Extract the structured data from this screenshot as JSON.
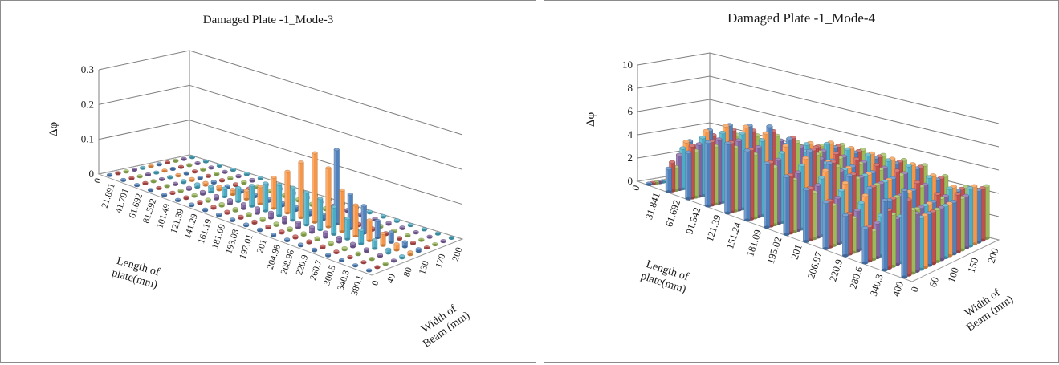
{
  "chart_data": [
    {
      "type": "bar3d",
      "title": "Damaged Plate -1_Mode-3",
      "zlabel": "Δφ",
      "xlabel": "Length of plate(mm)",
      "ylabel": "Width of Beam (mm)",
      "zlim": [
        0,
        0.3
      ],
      "zticks": [
        "0",
        "0.1",
        "0.2",
        "0.3"
      ],
      "x_ticks": [
        "0",
        "21.891",
        "41.791",
        "61.692",
        "81.592",
        "101.49",
        "121.39",
        "141.29",
        "161.19",
        "181.09",
        "193.03",
        "197.01",
        "201",
        "204.98",
        "208.96",
        "220.9",
        "260.7",
        "300.5",
        "340.3",
        "380.1"
      ],
      "y_ticks": [
        "0",
        "40",
        "80",
        "130",
        "170",
        "200"
      ],
      "series_colors": [
        "#4f81bd",
        "#c0504d",
        "#9bbb59",
        "#8064a2",
        "#4bacc6",
        "#f79646",
        "#4f81bd",
        "#c0504d",
        "#9bbb59",
        "#8064a2",
        "#4bacc6"
      ],
      "values": [
        [
          0.0,
          0.0,
          0.0,
          0.0,
          0.0,
          0.0,
          0.0,
          0.0,
          0.0,
          0.0,
          0.0
        ],
        [
          0.001,
          0.001,
          0.001,
          0.001,
          0.002,
          0.002,
          0.001,
          0.001,
          0.001,
          0.001,
          0.001
        ],
        [
          0.002,
          0.002,
          0.002,
          0.003,
          0.004,
          0.004,
          0.003,
          0.002,
          0.002,
          0.002,
          0.002
        ],
        [
          0.003,
          0.003,
          0.003,
          0.004,
          0.006,
          0.006,
          0.004,
          0.003,
          0.003,
          0.003,
          0.003
        ],
        [
          0.004,
          0.004,
          0.004,
          0.006,
          0.01,
          0.008,
          0.005,
          0.004,
          0.004,
          0.004,
          0.004
        ],
        [
          0.004,
          0.005,
          0.005,
          0.008,
          0.016,
          0.01,
          0.006,
          0.005,
          0.005,
          0.005,
          0.004
        ],
        [
          0.005,
          0.006,
          0.006,
          0.01,
          0.025,
          0.015,
          0.007,
          0.006,
          0.006,
          0.005,
          0.005
        ],
        [
          0.005,
          0.006,
          0.007,
          0.012,
          0.04,
          0.025,
          0.008,
          0.006,
          0.006,
          0.006,
          0.005
        ],
        [
          0.005,
          0.006,
          0.007,
          0.014,
          0.06,
          0.05,
          0.009,
          0.007,
          0.006,
          0.006,
          0.005
        ],
        [
          0.005,
          0.006,
          0.007,
          0.016,
          0.08,
          0.09,
          0.01,
          0.007,
          0.006,
          0.006,
          0.005
        ],
        [
          0.005,
          0.006,
          0.007,
          0.017,
          0.09,
          0.12,
          0.012,
          0.007,
          0.006,
          0.006,
          0.005
        ],
        [
          0.005,
          0.006,
          0.007,
          0.017,
          0.095,
          0.16,
          0.014,
          0.007,
          0.006,
          0.006,
          0.005
        ],
        [
          0.005,
          0.006,
          0.007,
          0.016,
          0.095,
          0.2,
          0.016,
          0.007,
          0.006,
          0.006,
          0.005
        ],
        [
          0.005,
          0.006,
          0.007,
          0.016,
          0.09,
          0.17,
          0.215,
          0.007,
          0.006,
          0.006,
          0.005
        ],
        [
          0.005,
          0.006,
          0.007,
          0.015,
          0.08,
          0.12,
          0.1,
          0.007,
          0.006,
          0.006,
          0.005
        ],
        [
          0.005,
          0.006,
          0.007,
          0.014,
          0.06,
          0.09,
          0.08,
          0.007,
          0.006,
          0.006,
          0.005
        ],
        [
          0.004,
          0.005,
          0.006,
          0.01,
          0.04,
          0.06,
          0.05,
          0.006,
          0.005,
          0.005,
          0.004
        ],
        [
          0.003,
          0.004,
          0.005,
          0.008,
          0.025,
          0.035,
          0.03,
          0.005,
          0.004,
          0.004,
          0.003
        ],
        [
          0.002,
          0.003,
          0.004,
          0.005,
          0.012,
          0.018,
          0.015,
          0.004,
          0.003,
          0.003,
          0.002
        ],
        [
          0.001,
          0.002,
          0.002,
          0.003,
          0.006,
          0.008,
          0.008,
          0.003,
          0.002,
          0.002,
          0.001
        ]
      ]
    },
    {
      "type": "bar3d",
      "title": "Damaged Plate -1_Mode-4",
      "zlabel": "Δφ",
      "xlabel": "Length of plate(mm)",
      "ylabel": "Width of Beam (mm)",
      "zlim": [
        0,
        10
      ],
      "zticks": [
        "0",
        "2",
        "4",
        "6",
        "8",
        "10"
      ],
      "x_ticks": [
        "0",
        "31.841",
        "61.692",
        "91.542",
        "121.39",
        "151.24",
        "181.09",
        "195.02",
        "201",
        "206.97",
        "220.9",
        "280.6",
        "340.3",
        "400"
      ],
      "y_ticks": [
        "0",
        "60",
        "100",
        "150",
        "200"
      ],
      "series_colors": [
        "#4f81bd",
        "#c0504d",
        "#9bbb59",
        "#8064a2",
        "#4bacc6",
        "#f79646",
        "#4f81bd",
        "#c0504d",
        "#9bbb59",
        "#8064a2",
        "#4bacc6",
        "#f79646",
        "#4f81bd",
        "#c0504d",
        "#9bbb59",
        "#8064a2",
        "#4bacc6",
        "#f79646",
        "#4f81bd",
        "#c0504d",
        "#9bbb59"
      ],
      "values": [
        [
          0.0,
          0.0,
          0.0,
          0.0,
          0.0,
          0.0,
          0.0,
          0.0,
          0.0,
          0.0,
          0.0,
          0.0,
          0.0,
          0.0,
          0.0,
          0.0,
          0.0,
          0.0,
          0.0,
          0.0,
          0.0
        ],
        [
          2.0,
          2.5,
          2.0,
          3.0,
          3.5,
          4.0,
          4.0,
          3.5,
          3.0,
          2.5,
          2.0,
          1.5,
          2.0,
          2.5,
          2.0,
          2.0,
          2.5,
          2.5,
          2.0,
          2.0,
          2.0
        ],
        [
          4.0,
          4.5,
          4.0,
          4.5,
          5.0,
          5.5,
          5.5,
          5.0,
          4.5,
          4.0,
          3.5,
          3.0,
          3.0,
          3.5,
          3.0,
          3.0,
          3.5,
          3.5,
          3.0,
          3.0,
          3.0
        ],
        [
          5.5,
          5.5,
          5.0,
          5.5,
          6.0,
          6.5,
          6.5,
          6.0,
          5.5,
          5.0,
          4.5,
          4.0,
          3.5,
          4.0,
          3.5,
          3.5,
          4.0,
          4.0,
          3.5,
          3.5,
          3.5
        ],
        [
          6.0,
          6.0,
          5.5,
          6.0,
          6.5,
          7.0,
          7.0,
          6.5,
          6.0,
          5.5,
          5.0,
          4.5,
          4.0,
          4.5,
          4.0,
          4.0,
          4.5,
          4.5,
          4.0,
          4.0,
          4.0
        ],
        [
          6.0,
          6.0,
          5.5,
          6.0,
          6.5,
          7.0,
          7.5,
          7.0,
          6.5,
          6.0,
          5.5,
          5.0,
          4.5,
          5.0,
          4.5,
          4.5,
          5.0,
          5.0,
          4.5,
          4.5,
          4.5
        ],
        [
          5.5,
          5.5,
          5.0,
          5.5,
          6.0,
          6.5,
          7.0,
          7.0,
          6.5,
          6.0,
          5.5,
          5.0,
          5.0,
          5.5,
          5.0,
          5.0,
          5.5,
          5.5,
          5.0,
          5.0,
          5.0
        ],
        [
          5.0,
          5.0,
          4.5,
          5.0,
          5.5,
          6.0,
          6.5,
          6.5,
          6.0,
          5.5,
          5.0,
          5.0,
          5.0,
          5.5,
          5.0,
          5.0,
          5.5,
          5.5,
          5.0,
          5.0,
          5.0
        ],
        [
          4.5,
          4.5,
          4.0,
          4.5,
          5.0,
          5.5,
          6.0,
          6.0,
          5.5,
          5.0,
          5.0,
          5.0,
          5.0,
          5.5,
          5.0,
          5.0,
          5.5,
          5.5,
          5.0,
          5.0,
          5.0
        ],
        [
          4.0,
          4.0,
          3.5,
          4.0,
          4.5,
          5.0,
          5.5,
          5.5,
          5.0,
          5.0,
          5.0,
          5.0,
          5.0,
          5.5,
          5.0,
          5.0,
          5.5,
          5.5,
          5.0,
          5.0,
          5.0
        ],
        [
          3.5,
          3.5,
          3.0,
          3.5,
          4.0,
          4.5,
          5.0,
          5.0,
          5.0,
          5.0,
          5.0,
          5.0,
          5.0,
          5.5,
          5.0,
          5.0,
          5.5,
          5.5,
          5.0,
          5.0,
          5.0
        ],
        [
          3.0,
          3.0,
          2.5,
          3.0,
          3.5,
          4.0,
          4.5,
          4.5,
          4.5,
          4.5,
          4.5,
          4.5,
          4.5,
          5.0,
          4.5,
          4.5,
          5.0,
          5.0,
          4.5,
          4.5,
          4.5
        ],
        [
          6.0,
          5.0,
          4.5,
          4.0,
          4.0,
          4.0,
          4.0,
          4.0,
          4.0,
          4.0,
          4.0,
          4.0,
          4.0,
          4.5,
          4.0,
          4.0,
          4.5,
          4.5,
          4.0,
          4.0,
          4.0
        ],
        [
          7.5,
          6.5,
          5.5,
          5.0,
          4.5,
          4.5,
          4.5,
          4.5,
          4.5,
          4.5,
          4.5,
          4.5,
          4.5,
          5.0,
          4.5,
          4.5,
          5.0,
          5.0,
          4.5,
          4.5,
          4.5
        ]
      ]
    }
  ]
}
